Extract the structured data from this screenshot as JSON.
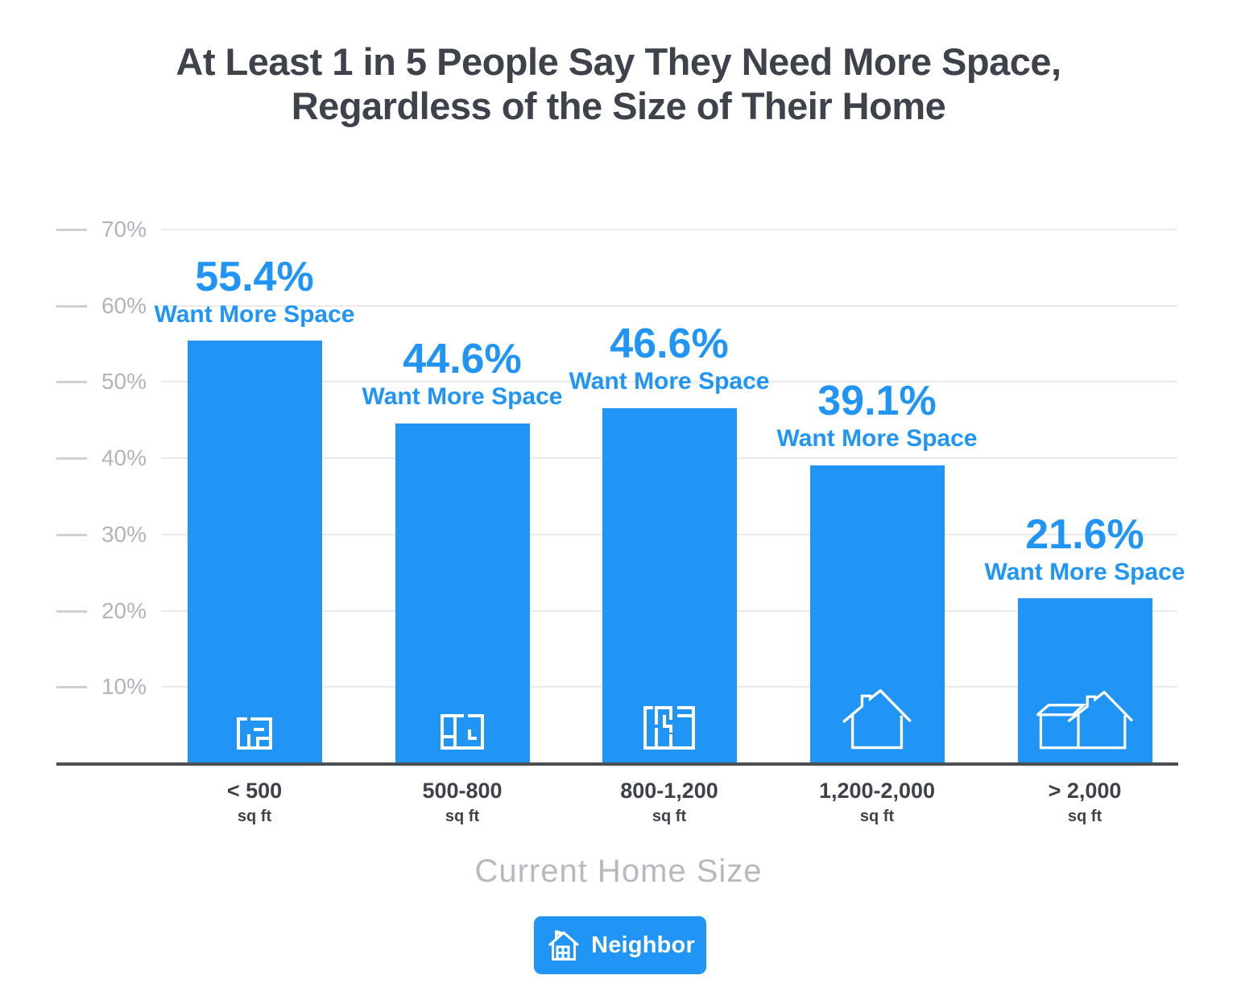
{
  "title": {
    "line1": "At Least 1 in 5 People Say They Need More Space,",
    "line2": "Regardless of the Size of Their Home"
  },
  "chart_data": {
    "type": "bar",
    "title": "At Least 1 in 5 People Say They Need More Space, Regardless of the Size of Their Home",
    "xlabel": "Current Home Size",
    "ylabel": "",
    "ylim": [
      0,
      70
    ],
    "yticks": [
      10,
      20,
      30,
      40,
      50,
      60,
      70
    ],
    "ytick_labels": [
      "10%",
      "20%",
      "30%",
      "40%",
      "50%",
      "60%",
      "70%"
    ],
    "grid": true,
    "legend": false,
    "categories": [
      "< 500 sq ft",
      "500-800 sq ft",
      "800-1,200 sq ft",
      "1,200-2,000 sq ft",
      "> 2,000 sq ft"
    ],
    "x_tick_main": [
      "< 500",
      "500-800",
      "800-1,200",
      "1,200-2,000",
      "> 2,000"
    ],
    "x_tick_sub": [
      "sq ft",
      "sq ft",
      "sq ft",
      "sq ft",
      "sq ft"
    ],
    "values": [
      55.4,
      44.6,
      46.6,
      39.1,
      21.6
    ],
    "value_labels": [
      "55.4%",
      "44.6%",
      "46.6%",
      "39.1%",
      "21.6%"
    ],
    "value_sublabels": [
      "Want More Space",
      "Want More Space",
      "Want More Space",
      "Want More Space",
      "Want More Space"
    ],
    "bar_icons": [
      "floorplan-studio-icon",
      "floorplan-one-bed-icon",
      "floorplan-multi-room-icon",
      "house-icon",
      "large-house-icon"
    ]
  },
  "footer": {
    "brand_label": "Neighbor"
  },
  "colors": {
    "bar_blue": "#2095f6",
    "value_label_text": "#2095f6",
    "title_text": "#3e434b",
    "y_tick_text": "#b0b4bb",
    "x_tick_text": "#3e434b",
    "gridline": "#e9eaec",
    "tick_dash": "#cdd0d4",
    "axis_line": "#4b4e53",
    "xaxis_title_text": "#b5b9c0",
    "background": "#ffffff"
  }
}
